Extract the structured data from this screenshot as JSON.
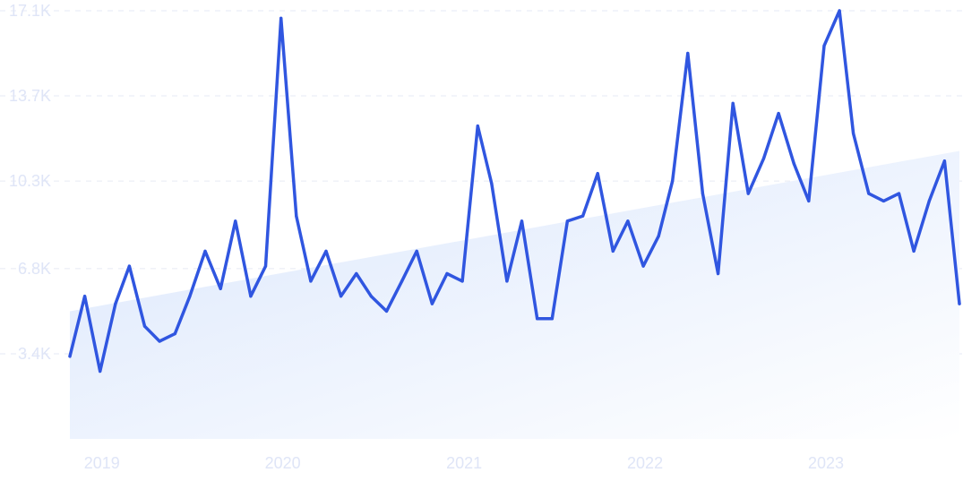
{
  "chart_data": {
    "type": "line",
    "title": "",
    "xlabel": "",
    "ylabel": "",
    "ylim": [
      0,
      17100
    ],
    "y_ticks": [
      3400,
      6800,
      10300,
      13700,
      17100
    ],
    "y_tick_labels": [
      "3.4K",
      "6.8K",
      "10.3K",
      "13.7K",
      "17.1K"
    ],
    "x_ticks": [
      "2019-01-01",
      "2020-01-01",
      "2021-01-01",
      "2022-01-01",
      "2023-01-01"
    ],
    "x_tick_labels": [
      "2019",
      "2020",
      "2021",
      "2022",
      "2023"
    ],
    "x_range": [
      "2018-11-01",
      "2023-10-01"
    ],
    "grid": "horizontal",
    "colors": {
      "line": "#3056e0",
      "trend_fill_start": "#dbe7fc",
      "trend_fill_end": "#ffffff",
      "tick_text": "#dfe5f7",
      "grid": "#e6eaf4"
    },
    "trend": {
      "start": 5100,
      "end": 11500
    },
    "series": [
      {
        "x": [
          "2018-11-01",
          "2018-12-01",
          "2019-01-01",
          "2019-02-01",
          "2019-03-01",
          "2019-04-01",
          "2019-05-01",
          "2019-06-01",
          "2019-07-01",
          "2019-08-01",
          "2019-09-01",
          "2019-10-01",
          "2019-11-01",
          "2019-12-01",
          "2020-01-01",
          "2020-02-01",
          "2020-03-01",
          "2020-04-01",
          "2020-05-01",
          "2020-06-01",
          "2020-07-01",
          "2020-08-01",
          "2020-09-01",
          "2020-10-01",
          "2020-11-01",
          "2020-12-01",
          "2021-01-01",
          "2021-02-01",
          "2021-03-01",
          "2021-04-01",
          "2021-05-01",
          "2021-06-01",
          "2021-07-01",
          "2021-08-01",
          "2021-09-01",
          "2021-10-01",
          "2021-11-01",
          "2021-12-01",
          "2022-01-01",
          "2022-02-01",
          "2022-03-01",
          "2022-04-01",
          "2022-05-01",
          "2022-06-01",
          "2022-07-01",
          "2022-08-01",
          "2022-09-01",
          "2022-10-01",
          "2022-11-01",
          "2022-12-01",
          "2023-01-01",
          "2023-02-01",
          "2023-03-01",
          "2023-04-01",
          "2023-05-01",
          "2023-06-01",
          "2023-07-01",
          "2023-08-01",
          "2023-09-01",
          "2023-10-01"
        ],
        "values": [
          3300,
          5700,
          2700,
          5400,
          6900,
          4500,
          3900,
          4200,
          5700,
          7500,
          6000,
          8700,
          5700,
          6900,
          16800,
          8900,
          6300,
          7500,
          5700,
          6600,
          5700,
          5100,
          6300,
          7500,
          5400,
          6600,
          6300,
          12500,
          10200,
          6300,
          8700,
          4800,
          4800,
          8700,
          8900,
          10600,
          7500,
          8700,
          6900,
          8100,
          10300,
          15400,
          9800,
          6600,
          13400,
          9800,
          11200,
          13000,
          11000,
          9500,
          15700,
          17100,
          12200,
          9800,
          9500,
          9800,
          7500,
          9500,
          11100,
          5400
        ]
      }
    ]
  }
}
